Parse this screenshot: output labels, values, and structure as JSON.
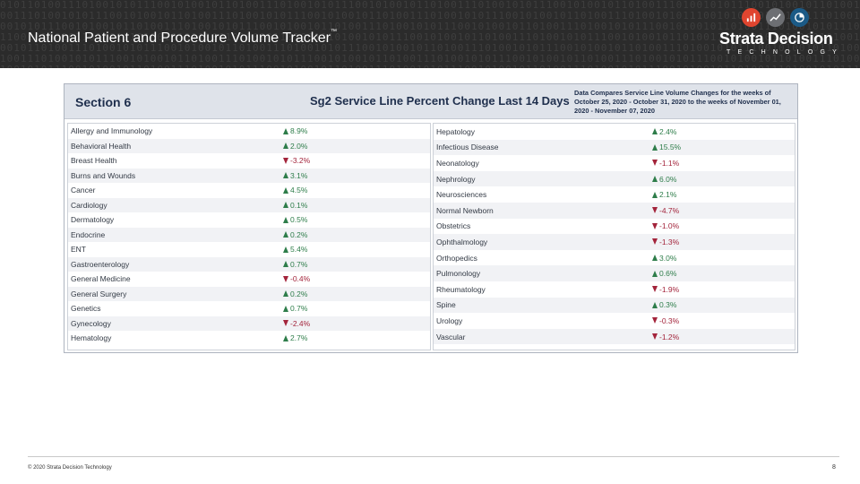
{
  "header": {
    "title": "National Patient and Procedure Volume Tracker",
    "trademark": "™",
    "brand": "Strata Decision",
    "brand_sub": "TECHNOLOGY",
    "icons": [
      "bar-chart-icon",
      "trend-line-icon",
      "pie-chart-icon"
    ],
    "icon_colors": [
      "#e0452f",
      "#6d6f73",
      "#1b5a86"
    ],
    "binary_pattern": "0101101001110100101011100101001011010011101001010111001010010110100111010010101110010100101101001110100101011100101001011010011101001010111001010"
  },
  "panel": {
    "section": "Section 6",
    "title": "Sg2 Service Line Percent Change Last 14 Days",
    "note": "Data Compares Service Line Volume Changes for the weeks of October 25, 2020 - October 31, 2020 to the weeks of November 01, 2020 - November 07, 2020"
  },
  "left_rows": [
    {
      "label": "Allergy and Immunology",
      "value": "8.9%",
      "dir": "up"
    },
    {
      "label": "Behavioral Health",
      "value": "2.0%",
      "dir": "up"
    },
    {
      "label": "Breast Health",
      "value": "-3.2%",
      "dir": "down"
    },
    {
      "label": "Burns and Wounds",
      "value": "3.1%",
      "dir": "up"
    },
    {
      "label": "Cancer",
      "value": "4.5%",
      "dir": "up"
    },
    {
      "label": "Cardiology",
      "value": "0.1%",
      "dir": "up"
    },
    {
      "label": "Dermatology",
      "value": "0.5%",
      "dir": "up"
    },
    {
      "label": "Endocrine",
      "value": "0.2%",
      "dir": "up"
    },
    {
      "label": "ENT",
      "value": "5.4%",
      "dir": "up"
    },
    {
      "label": "Gastroenterology",
      "value": "0.7%",
      "dir": "up"
    },
    {
      "label": "General Medicine",
      "value": "-0.4%",
      "dir": "down"
    },
    {
      "label": "General Surgery",
      "value": "0.2%",
      "dir": "up"
    },
    {
      "label": "Genetics",
      "value": "0.7%",
      "dir": "up"
    },
    {
      "label": "Gynecology",
      "value": "-2.4%",
      "dir": "down"
    },
    {
      "label": "Hematology",
      "value": "2.7%",
      "dir": "up"
    }
  ],
  "right_rows": [
    {
      "label": "Hepatology",
      "value": "2.4%",
      "dir": "up"
    },
    {
      "label": "Infectious Disease",
      "value": "15.5%",
      "dir": "up"
    },
    {
      "label": "Neonatology",
      "value": "-1.1%",
      "dir": "down"
    },
    {
      "label": "Nephrology",
      "value": "6.0%",
      "dir": "up"
    },
    {
      "label": "Neurosciences",
      "value": "2.1%",
      "dir": "up"
    },
    {
      "label": "Normal Newborn",
      "value": "-4.7%",
      "dir": "down"
    },
    {
      "label": "Obstetrics",
      "value": "-1.0%",
      "dir": "down"
    },
    {
      "label": "Ophthalmology",
      "value": "-1.3%",
      "dir": "down"
    },
    {
      "label": "Orthopedics",
      "value": "3.0%",
      "dir": "up"
    },
    {
      "label": "Pulmonology",
      "value": "0.6%",
      "dir": "up"
    },
    {
      "label": "Rheumatology",
      "value": "-1.9%",
      "dir": "down"
    },
    {
      "label": "Spine",
      "value": "0.3%",
      "dir": "up"
    },
    {
      "label": "Urology",
      "value": "-0.3%",
      "dir": "down"
    },
    {
      "label": "Vascular",
      "value": "-1.2%",
      "dir": "down"
    }
  ],
  "colors": {
    "up": "#2e7d4a",
    "down": "#a3243b",
    "up_text": "#2e7d4a",
    "down_text": "#a3243b"
  },
  "footer": {
    "copyright": "© 2020 Strata Decision Technology",
    "page_number": "8"
  }
}
